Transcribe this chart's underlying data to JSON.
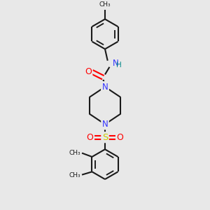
{
  "background_color": "#e8e8e8",
  "bond_color": "#1a1a1a",
  "nitrogen_color": "#3333ff",
  "oxygen_color": "#ff0000",
  "sulfur_color": "#cccc00",
  "nh_color": "#008888",
  "lw": 1.5,
  "fig_w": 3.0,
  "fig_h": 3.0,
  "dpi": 100,
  "xlim": [
    -1.3,
    1.3
  ],
  "ylim": [
    -3.2,
    2.1
  ],
  "ring_r": 0.4,
  "dbo": 0.055
}
